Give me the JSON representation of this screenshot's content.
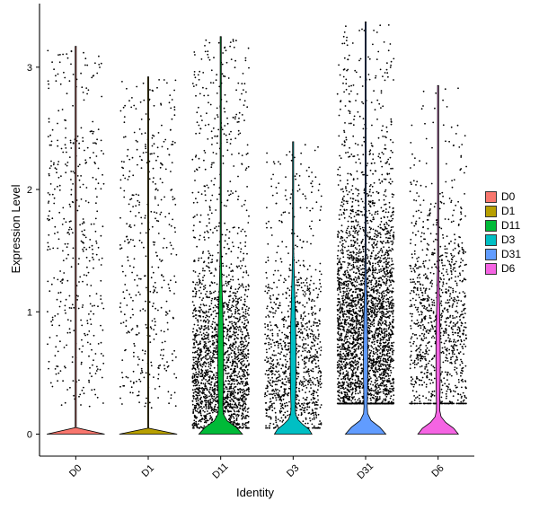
{
  "chart_data": {
    "type": "violin",
    "title": "",
    "xlabel": "Identity",
    "ylabel": "Expression Level",
    "ylim": [
      -0.18,
      3.52
    ],
    "yticks": [
      0,
      1,
      2,
      3
    ],
    "categories": [
      "D0",
      "D1",
      "D11",
      "D3",
      "D31",
      "D6"
    ],
    "colors": [
      "#F8766D",
      "#B79F00",
      "#00BA38",
      "#00BFC4",
      "#619CFF",
      "#F564E3"
    ],
    "groups": [
      {
        "name": "D0",
        "max": 3.15,
        "zero_fraction_width": 0.0,
        "points": 420,
        "spread": "uniform"
      },
      {
        "name": "D1",
        "max": 2.9,
        "zero_fraction_width": 0.0,
        "points": 420,
        "spread": "uniform"
      },
      {
        "name": "D11",
        "max": 3.23,
        "zero_fraction_width": 0.32,
        "points": 2200,
        "spread": "low"
      },
      {
        "name": "D3",
        "max": 2.37,
        "zero_fraction_width": 0.22,
        "points": 1100,
        "spread": "low"
      },
      {
        "name": "D31",
        "max": 3.35,
        "zero_fraction_width": 0.28,
        "points": 3300,
        "spread": "mid"
      },
      {
        "name": "D6",
        "max": 2.83,
        "zero_fraction_width": 0.28,
        "points": 1100,
        "spread": "mid"
      }
    ],
    "legend": {
      "position": "right",
      "title": ""
    },
    "grid": false
  }
}
